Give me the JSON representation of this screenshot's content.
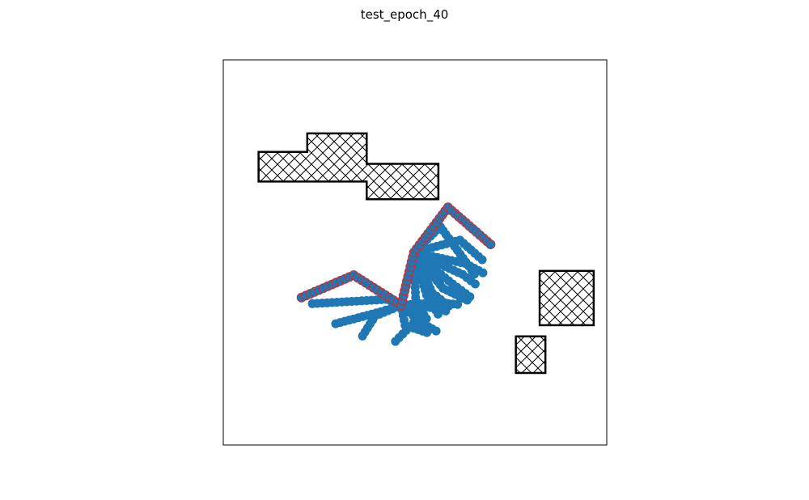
{
  "chart_data": {
    "type": "scatter",
    "title": "test_epoch_40",
    "xlabel": "",
    "ylabel": "",
    "xlim": [
      0,
      1
    ],
    "ylim": [
      0,
      1
    ],
    "ticks_visible": false,
    "grid": false,
    "obstacles": [
      {
        "name": "obstacle-1",
        "hatch": "cross",
        "polygon": [
          [
            0.092,
            0.684
          ],
          [
            0.219,
            0.684
          ],
          [
            0.219,
            0.684
          ],
          [
            0.374,
            0.684
          ],
          [
            0.374,
            0.638
          ],
          [
            0.561,
            0.638
          ],
          [
            0.561,
            0.73
          ],
          [
            0.374,
            0.73
          ],
          [
            0.374,
            0.809
          ],
          [
            0.219,
            0.809
          ],
          [
            0.219,
            0.761
          ],
          [
            0.092,
            0.761
          ]
        ]
      },
      {
        "name": "obstacle-2",
        "hatch": "cross",
        "rect": [
          0.825,
          0.311,
          0.966,
          0.452
        ]
      },
      {
        "name": "obstacle-3",
        "hatch": "cross",
        "rect": [
          0.763,
          0.187,
          0.84,
          0.282
        ]
      }
    ],
    "arm_links": [
      {
        "name": "link-a",
        "highlight": true,
        "points": [
          [
            0.204,
            0.383
          ],
          [
            0.34,
            0.441
          ],
          [
            0.464,
            0.363
          ],
          [
            0.497,
            0.5
          ],
          [
            0.586,
            0.617
          ],
          [
            0.697,
            0.521
          ]
        ]
      },
      {
        "name": "link-b",
        "highlight": false,
        "points": [
          [
            0.464,
            0.363
          ],
          [
            0.497,
            0.5
          ],
          [
            0.566,
            0.567
          ],
          [
            0.655,
            0.444
          ]
        ]
      },
      {
        "name": "link-c",
        "highlight": false,
        "points": [
          [
            0.497,
            0.5
          ],
          [
            0.617,
            0.532
          ],
          [
            0.675,
            0.481
          ]
        ]
      },
      {
        "name": "link-d",
        "highlight": false,
        "points": [
          [
            0.497,
            0.5
          ],
          [
            0.632,
            0.471
          ],
          [
            0.677,
            0.447
          ]
        ]
      },
      {
        "name": "link-e",
        "highlight": false,
        "points": [
          [
            0.497,
            0.5
          ],
          [
            0.624,
            0.443
          ],
          [
            0.657,
            0.418
          ]
        ]
      },
      {
        "name": "link-f",
        "highlight": false,
        "points": [
          [
            0.497,
            0.5
          ],
          [
            0.598,
            0.418
          ],
          [
            0.643,
            0.385
          ]
        ]
      },
      {
        "name": "link-g",
        "highlight": false,
        "points": [
          [
            0.497,
            0.5
          ],
          [
            0.573,
            0.407
          ],
          [
            0.636,
            0.376
          ]
        ]
      },
      {
        "name": "link-h",
        "highlight": false,
        "points": [
          [
            0.497,
            0.5
          ],
          [
            0.545,
            0.395
          ],
          [
            0.588,
            0.361
          ]
        ]
      },
      {
        "name": "link-i",
        "highlight": false,
        "points": [
          [
            0.497,
            0.5
          ],
          [
            0.53,
            0.39
          ],
          [
            0.56,
            0.34
          ]
        ]
      },
      {
        "name": "link-j",
        "highlight": false,
        "points": [
          [
            0.497,
            0.5
          ],
          [
            0.502,
            0.37
          ],
          [
            0.53,
            0.328
          ]
        ]
      },
      {
        "name": "link-k",
        "highlight": false,
        "points": [
          [
            0.464,
            0.363
          ],
          [
            0.562,
            0.37
          ],
          [
            0.611,
            0.365
          ]
        ]
      },
      {
        "name": "link-l",
        "highlight": false,
        "points": [
          [
            0.464,
            0.363
          ],
          [
            0.539,
            0.357
          ],
          [
            0.58,
            0.348
          ]
        ]
      },
      {
        "name": "link-m",
        "highlight": false,
        "points": [
          [
            0.464,
            0.363
          ],
          [
            0.515,
            0.318
          ],
          [
            0.555,
            0.296
          ]
        ]
      },
      {
        "name": "link-n",
        "highlight": false,
        "points": [
          [
            0.464,
            0.363
          ],
          [
            0.425,
            0.378
          ],
          [
            0.232,
            0.367
          ]
        ]
      },
      {
        "name": "link-o",
        "highlight": false,
        "points": [
          [
            0.464,
            0.363
          ],
          [
            0.411,
            0.346
          ],
          [
            0.293,
            0.315
          ]
        ]
      },
      {
        "name": "link-p",
        "highlight": false,
        "points": [
          [
            0.464,
            0.363
          ],
          [
            0.396,
            0.335
          ],
          [
            0.363,
            0.283
          ]
        ]
      },
      {
        "name": "link-q",
        "highlight": false,
        "points": [
          [
            0.464,
            0.363
          ],
          [
            0.515,
            0.336
          ],
          [
            0.449,
            0.269
          ]
        ]
      },
      {
        "name": "link-r",
        "highlight": false,
        "points": [
          [
            0.464,
            0.363
          ],
          [
            0.474,
            0.311
          ],
          [
            0.531,
            0.292
          ]
        ]
      }
    ],
    "colors": {
      "marker": "#1f77b4",
      "highlight_outline": "#d62728",
      "obstacle_edge": "#000000",
      "frame": "#000000"
    }
  }
}
